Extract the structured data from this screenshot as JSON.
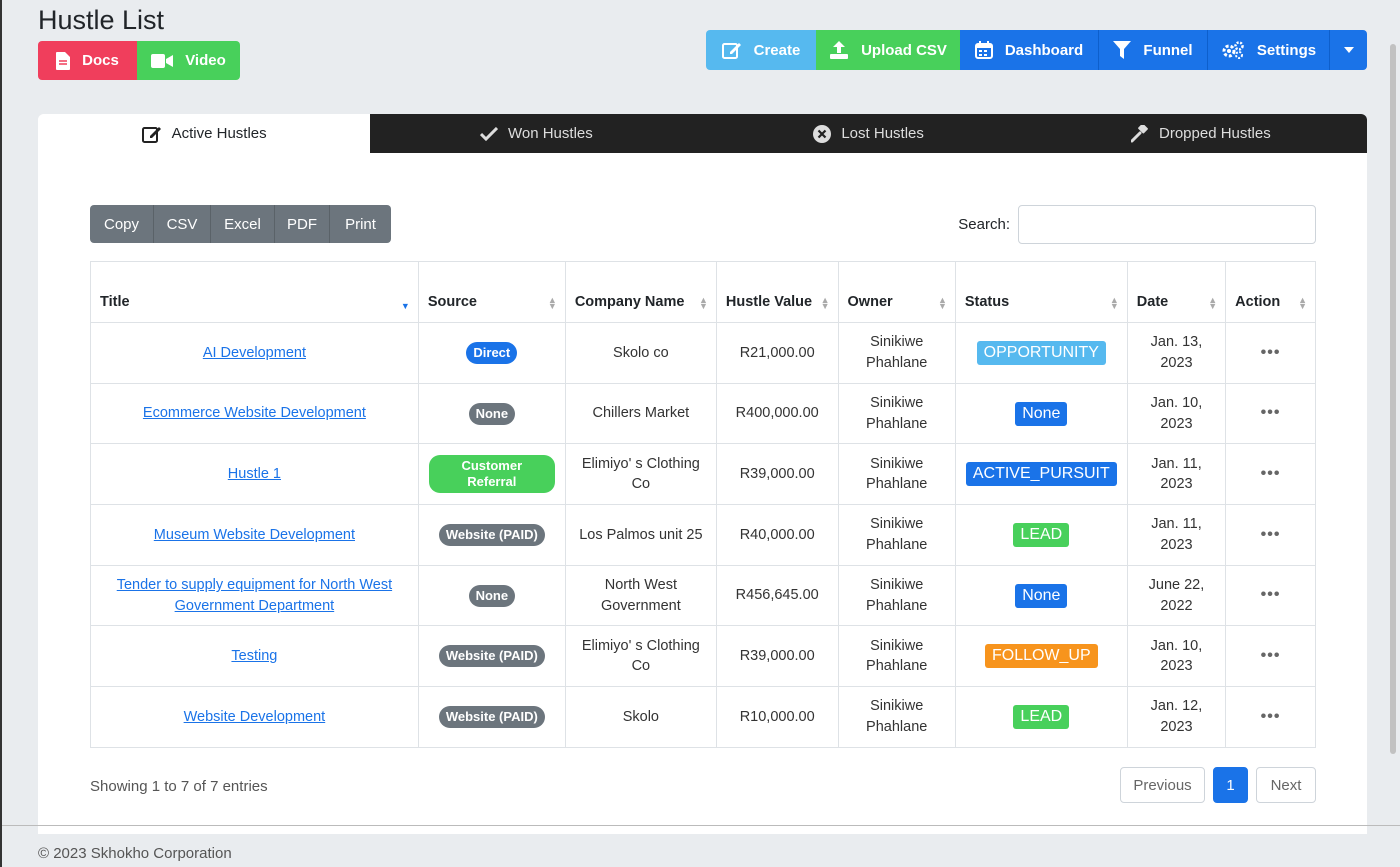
{
  "page": {
    "title": "Hustle List"
  },
  "doc_buttons": {
    "docs": "Docs",
    "video": "Video"
  },
  "toolbar": {
    "create": "Create",
    "upload": "Upload CSV",
    "dashboard": "Dashboard",
    "funnel": "Funnel",
    "settings": "Settings"
  },
  "tabs": [
    {
      "label": "Active Hustles",
      "icon": "edit-icon"
    },
    {
      "label": "Won Hustles",
      "icon": "check-icon"
    },
    {
      "label": "Lost Hustles",
      "icon": "x-circle-icon"
    },
    {
      "label": "Dropped Hustles",
      "icon": "gavel-icon"
    }
  ],
  "export": [
    "Copy",
    "CSV",
    "Excel",
    "PDF",
    "Print"
  ],
  "search": {
    "label": "Search:",
    "value": ""
  },
  "table": {
    "headers": [
      "Title",
      "Source",
      "Company Name",
      "Hustle Value",
      "Owner",
      "Status",
      "Date",
      "Action"
    ],
    "rows": [
      {
        "title": "AI Development",
        "source": "Direct",
        "company": "Skolo co",
        "value": "R21,000.00",
        "owner": "Sinikiwe Phahlane",
        "status": "OPPORTUNITY",
        "date": "Jan. 13, 2023"
      },
      {
        "title": "Ecommerce Website Development",
        "source": "None",
        "company": "Chillers Market",
        "value": "R400,000.00",
        "owner": "Sinikiwe Phahlane",
        "status": "None",
        "date": "Jan. 10, 2023"
      },
      {
        "title": "Hustle 1",
        "source": "Customer Referral",
        "company": "Elimiyo' s Clothing Co",
        "value": "R39,000.00",
        "owner": "Sinikiwe Phahlane",
        "status": "ACTIVE_PURSUIT",
        "date": "Jan. 11, 2023"
      },
      {
        "title": "Museum Website Development",
        "source": "Website (PAID)",
        "company": "Los Palmos unit 25",
        "value": "R40,000.00",
        "owner": "Sinikiwe Phahlane",
        "status": "LEAD",
        "date": "Jan. 11, 2023"
      },
      {
        "title": "Tender to supply equipment for North West Government Department",
        "source": "None",
        "company": "North West Government",
        "value": "R456,645.00",
        "owner": "Sinikiwe Phahlane",
        "status": "None",
        "date": "June 22, 2022"
      },
      {
        "title": "Testing",
        "source": "Website (PAID)",
        "company": "Elimiyo' s Clothing Co",
        "value": "R39,000.00",
        "owner": "Sinikiwe Phahlane",
        "status": "FOLLOW_UP",
        "date": "Jan. 10, 2023"
      },
      {
        "title": "Website Development",
        "source": "Website (PAID)",
        "company": "Skolo",
        "value": "R10,000.00",
        "owner": "Sinikiwe Phahlane",
        "status": "LEAD",
        "date": "Jan. 12, 2023"
      }
    ]
  },
  "source_colors": {
    "Direct": "#1a73e8",
    "None": "#6c757d",
    "Customer Referral": "#48d05b",
    "Website (PAID)": "#6c757d"
  },
  "status_colors": {
    "OPPORTUNITY": "#56b9ef",
    "None": "#1a73e8",
    "ACTIVE_PURSUIT": "#1a73e8",
    "LEAD": "#48d05b",
    "FOLLOW_UP": "#f7941d"
  },
  "pagination": {
    "info": "Showing 1 to 7 of 7 entries",
    "previous": "Previous",
    "current": "1",
    "next": "Next"
  },
  "footer": "© 2023 Skhokho Corporation"
}
